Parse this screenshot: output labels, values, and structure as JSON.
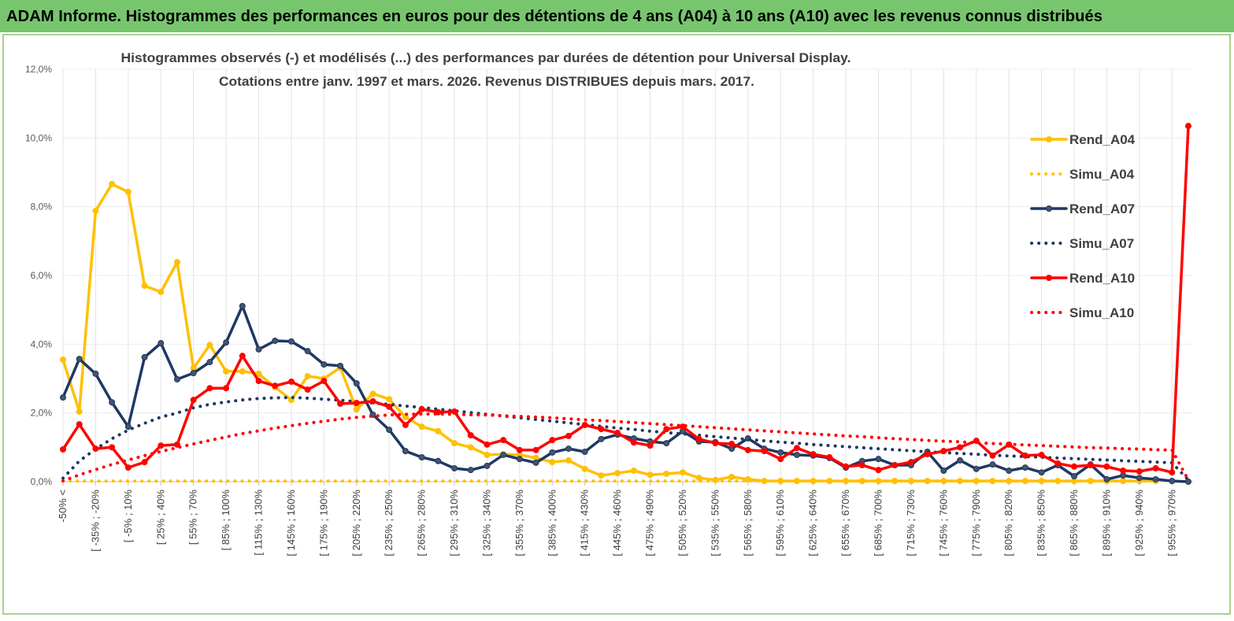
{
  "header": {
    "title": "ADAM Informe. Histogrammes des performances en euros pour des détentions de 4 ans (A04) à 10 ans (A10) avec les revenus connus distribués"
  },
  "chart_data": {
    "type": "line",
    "title": "Histogrammes observés (-) et modélisés (...) des performances par durées de détention pour Universal Display.",
    "subtitle": "Cotations entre janv. 1997 et mars. 2026. Revenus DISTRIBUES depuis mars. 2017.",
    "categories": [
      "-50% <",
      null,
      "[ -35% ; -20%",
      null,
      "[ -5% ; 10%",
      null,
      "[ 25% ; 40%",
      null,
      "[ 55% ; 70%",
      null,
      "[ 85% ; 100%",
      null,
      "[ 115% ; 130%",
      null,
      "[ 145% ; 160%",
      null,
      "[ 175% ; 190%",
      null,
      "[ 205% ; 220%",
      null,
      "[ 235% ; 250%",
      null,
      "[ 265% ; 280%",
      null,
      "[ 295% ; 310%",
      null,
      "[ 325% ; 340%",
      null,
      "[ 355% ; 370%",
      null,
      "[ 385% ; 400%",
      null,
      "[ 415% ; 430%",
      null,
      "[ 445% ; 460%",
      null,
      "[ 475% ; 490%",
      null,
      "[ 505% ; 520%",
      null,
      "[ 535% ; 550%",
      null,
      "[ 565% ; 580%",
      null,
      "[ 595% ; 610%",
      null,
      "[ 625% ; 640%",
      null,
      "[ 655% ; 670%",
      null,
      "[ 685% ; 700%",
      null,
      "[ 715% ; 730%",
      null,
      "[ 745% ; 760%",
      null,
      "[ 775% ; 790%",
      null,
      "[ 805% ; 820%",
      null,
      "[ 835% ; 850%",
      null,
      "[ 865% ; 880%",
      null,
      "[ 895% ; 910%",
      null,
      "[ 925% ; 940%",
      null,
      "[ 955% ; 970%",
      null
    ],
    "ylim": [
      0,
      12
    ],
    "yticks": [
      {
        "value": 0,
        "label": "0,0%"
      },
      {
        "value": 2,
        "label": "2,0%"
      },
      {
        "value": 4,
        "label": "4,0%"
      },
      {
        "value": 6,
        "label": "6,0%"
      },
      {
        "value": 8,
        "label": "8,0%"
      },
      {
        "value": 10,
        "label": "10,0%"
      },
      {
        "value": 12,
        "label": "12,0%"
      }
    ],
    "grid": true,
    "legend": "right",
    "series": [
      {
        "name": "Rend_A04",
        "color": "#ffc000",
        "style": "solid",
        "values": [
          3.55,
          2.04,
          7.88,
          8.66,
          8.43,
          5.7,
          5.52,
          6.39,
          3.3,
          3.98,
          3.21,
          3.21,
          3.14,
          2.75,
          2.38,
          3.07,
          3.0,
          3.32,
          2.1,
          2.56,
          2.4,
          1.88,
          1.6,
          1.47,
          1.12,
          1.0,
          0.78,
          0.8,
          0.78,
          0.69,
          0.57,
          0.62,
          0.37,
          0.18,
          0.25,
          0.32,
          0.2,
          0.23,
          0.27,
          0.11,
          0.05,
          0.14,
          0.07,
          0.02,
          0.02,
          0.02,
          0.02,
          0.02,
          0.02,
          0.02,
          0.02,
          0.02,
          0.02,
          0.02,
          0.02,
          0.02,
          0.02,
          0.02,
          0.02,
          0.02,
          0.02,
          0.02,
          0.02,
          0.02,
          0.02,
          0.02,
          0.02,
          0.02,
          null,
          null
        ]
      },
      {
        "name": "Simu_A04",
        "color": "#ffc000",
        "style": "dotted",
        "values": [
          0.02,
          0.02,
          0.02,
          0.02,
          0.02,
          0.02,
          0.02,
          0.02,
          0.02,
          0.02,
          0.02,
          0.02,
          0.02,
          0.02,
          0.02,
          0.02,
          0.02,
          0.02,
          0.02,
          0.02,
          0.02,
          0.02,
          0.02,
          0.02,
          0.02,
          0.02,
          0.02,
          0.02,
          0.02,
          0.02,
          0.02,
          0.02,
          0.02,
          0.02,
          0.02,
          0.02,
          0.02,
          0.02,
          0.02,
          0.02,
          0.02,
          0.02,
          0.02,
          0.02,
          0.02,
          0.02,
          0.02,
          0.02,
          0.02,
          0.02,
          0.02,
          0.02,
          0.02,
          0.02,
          0.02,
          0.02,
          0.02,
          0.02,
          0.02,
          0.02,
          0.02,
          0.02,
          0.02,
          0.02,
          0.02,
          0.02,
          0.02,
          0.02,
          null,
          null
        ]
      },
      {
        "name": "Rend_A07",
        "color": "#1f3864",
        "style": "solid",
        "values": [
          2.45,
          3.57,
          3.14,
          2.31,
          1.6,
          3.62,
          4.03,
          2.98,
          3.16,
          3.48,
          4.05,
          5.11,
          3.85,
          4.1,
          4.08,
          3.8,
          3.41,
          3.37,
          2.86,
          1.95,
          1.51,
          0.89,
          0.71,
          0.6,
          0.39,
          0.34,
          0.46,
          0.78,
          0.66,
          0.55,
          0.85,
          0.96,
          0.87,
          1.24,
          1.37,
          1.26,
          1.17,
          1.12,
          1.47,
          1.17,
          1.15,
          0.96,
          1.26,
          0.96,
          0.85,
          0.78,
          0.76,
          0.69,
          0.41,
          0.6,
          0.66,
          0.48,
          0.48,
          0.87,
          0.32,
          0.62,
          0.37,
          0.5,
          0.32,
          0.41,
          0.27,
          0.48,
          0.16,
          0.5,
          0.07,
          0.18,
          0.11,
          0.07,
          0.02,
          0.0
        ]
      },
      {
        "name": "Simu_A07",
        "color": "#1f3864",
        "style": "dotted",
        "values": [
          0.1,
          0.6,
          0.95,
          1.25,
          1.5,
          1.7,
          1.88,
          2.0,
          2.15,
          2.25,
          2.32,
          2.38,
          2.42,
          2.44,
          2.45,
          2.43,
          2.4,
          2.37,
          2.33,
          2.29,
          2.25,
          2.2,
          2.16,
          2.11,
          2.06,
          2.01,
          1.96,
          1.91,
          1.86,
          1.81,
          1.76,
          1.71,
          1.66,
          1.61,
          1.56,
          1.52,
          1.47,
          1.43,
          1.39,
          1.35,
          1.31,
          1.27,
          1.23,
          1.19,
          1.15,
          1.12,
          1.08,
          1.05,
          1.02,
          0.99,
          0.96,
          0.93,
          0.9,
          0.87,
          0.85,
          0.82,
          0.8,
          0.77,
          0.75,
          0.73,
          0.71,
          0.69,
          0.67,
          0.65,
          0.63,
          0.61,
          0.59,
          0.57,
          0.55,
          0.05
        ]
      },
      {
        "name": "Rend_A10",
        "color": "#ff0000",
        "style": "solid",
        "values": [
          0.94,
          1.67,
          0.96,
          1.0,
          0.41,
          0.57,
          1.05,
          1.08,
          2.38,
          2.72,
          2.72,
          3.66,
          2.93,
          2.79,
          2.91,
          2.68,
          2.93,
          2.27,
          2.29,
          2.34,
          2.18,
          1.65,
          2.11,
          2.02,
          2.04,
          1.35,
          1.08,
          1.21,
          0.92,
          0.92,
          1.21,
          1.33,
          1.65,
          1.53,
          1.42,
          1.14,
          1.05,
          1.53,
          1.6,
          1.24,
          1.12,
          1.1,
          0.92,
          0.89,
          0.66,
          0.98,
          0.8,
          0.71,
          0.44,
          0.48,
          0.34,
          0.48,
          0.57,
          0.8,
          0.89,
          1.0,
          1.19,
          0.76,
          1.08,
          0.76,
          0.78,
          0.53,
          0.44,
          0.48,
          0.44,
          0.32,
          0.3,
          0.39,
          0.27,
          10.35
        ]
      },
      {
        "name": "Simu_A10",
        "color": "#ff0000",
        "style": "dotted",
        "values": [
          0.02,
          0.2,
          0.35,
          0.5,
          0.63,
          0.76,
          0.88,
          0.99,
          1.1,
          1.2,
          1.3,
          1.4,
          1.48,
          1.56,
          1.63,
          1.7,
          1.76,
          1.82,
          1.87,
          1.91,
          1.94,
          1.96,
          1.97,
          1.97,
          1.96,
          1.95,
          1.94,
          1.92,
          1.9,
          1.88,
          1.86,
          1.83,
          1.8,
          1.78,
          1.75,
          1.72,
          1.69,
          1.66,
          1.63,
          1.6,
          1.57,
          1.54,
          1.51,
          1.48,
          1.45,
          1.42,
          1.39,
          1.36,
          1.33,
          1.31,
          1.28,
          1.25,
          1.23,
          1.2,
          1.18,
          1.16,
          1.13,
          1.11,
          1.09,
          1.07,
          1.05,
          1.03,
          1.01,
          0.99,
          0.98,
          0.96,
          0.95,
          0.93,
          0.92,
          0.05
        ]
      }
    ]
  }
}
